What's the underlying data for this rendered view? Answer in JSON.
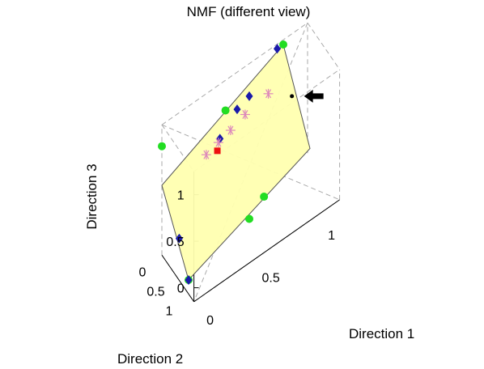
{
  "chart_data": {
    "type": "scatter",
    "title": "NMF (different view)",
    "xlabel": "Direction 1",
    "ylabel": "Direction 2",
    "zlabel": "Direction 3",
    "x_ticks": [
      "0",
      "0.5",
      "1"
    ],
    "y_ticks": [
      "0",
      "0.5",
      "1"
    ],
    "z_ticks": [
      "0",
      "0.5",
      "1"
    ],
    "xlim": [
      0,
      1.2
    ],
    "ylim": [
      0,
      1.2
    ],
    "zlim": [
      -0.15,
      1.25
    ],
    "grid": true,
    "colors": {
      "plane_fill": "#ffffb0",
      "plane_edge": "#555555",
      "data_points": "#22dd22",
      "nmf_projections": "#1a1aaa",
      "stars": "#dd88bb",
      "square": "#ee1111",
      "box_lines": "#aaaaaa"
    },
    "plane_polygon": [
      {
        "x": 0.0,
        "y": 1.0,
        "z": 0.0
      },
      {
        "x": 0.0,
        "y": 0.0,
        "z": 0.6
      },
      {
        "x": 1.0,
        "y": 0.0,
        "z": 1.2
      },
      {
        "x": 1.0,
        "y": 1.0,
        "z": 0.5
      }
    ],
    "series": [
      {
        "marker": "circle",
        "points": [
          {
            "x": 0.0,
            "y": 1.0,
            "z": 0.0
          },
          {
            "x": 0.0,
            "y": 0.0,
            "z": 1.02
          },
          {
            "x": 0.48,
            "y": 0.2,
            "z": 1.05
          },
          {
            "x": 1.0,
            "y": 0.0,
            "z": 1.2
          },
          {
            "x": 0.72,
            "y": 0.55,
            "z": 0.05
          },
          {
            "x": 0.5,
            "y": 1.0,
            "z": 0.2
          }
        ]
      },
      {
        "marker": "diamond",
        "points": [
          {
            "x": 0.0,
            "y": 1.0,
            "z": 0.0
          },
          {
            "x": 0.0,
            "y": 0.65,
            "z": 0.3
          },
          {
            "x": 0.62,
            "y": 0.0,
            "z": 0.85
          },
          {
            "x": 0.72,
            "y": 0.0,
            "z": 0.9
          },
          {
            "x": 0.95,
            "y": 0.0,
            "z": 1.2
          },
          {
            "x": 0.43,
            "y": 0.22,
            "z": 0.8
          }
        ]
      },
      {
        "marker": "star",
        "points": [
          {
            "x": 0.3,
            "y": 0.3,
            "z": 0.78
          },
          {
            "x": 0.4,
            "y": 0.3,
            "z": 0.82
          },
          {
            "x": 0.5,
            "y": 0.3,
            "z": 0.86
          },
          {
            "x": 0.62,
            "y": 0.3,
            "z": 0.92
          },
          {
            "x": 0.8,
            "y": 0.35,
            "z": 1.0
          }
        ]
      },
      {
        "marker": "square",
        "points": [
          {
            "x": 0.38,
            "y": 0.35,
            "z": 0.77
          }
        ]
      },
      {
        "marker": "dot",
        "points": [
          {
            "x": 0.95,
            "y": 0.55,
            "z": 0.92
          }
        ]
      }
    ],
    "annotations": [
      {
        "type": "arrow",
        "direction": "left"
      }
    ]
  }
}
